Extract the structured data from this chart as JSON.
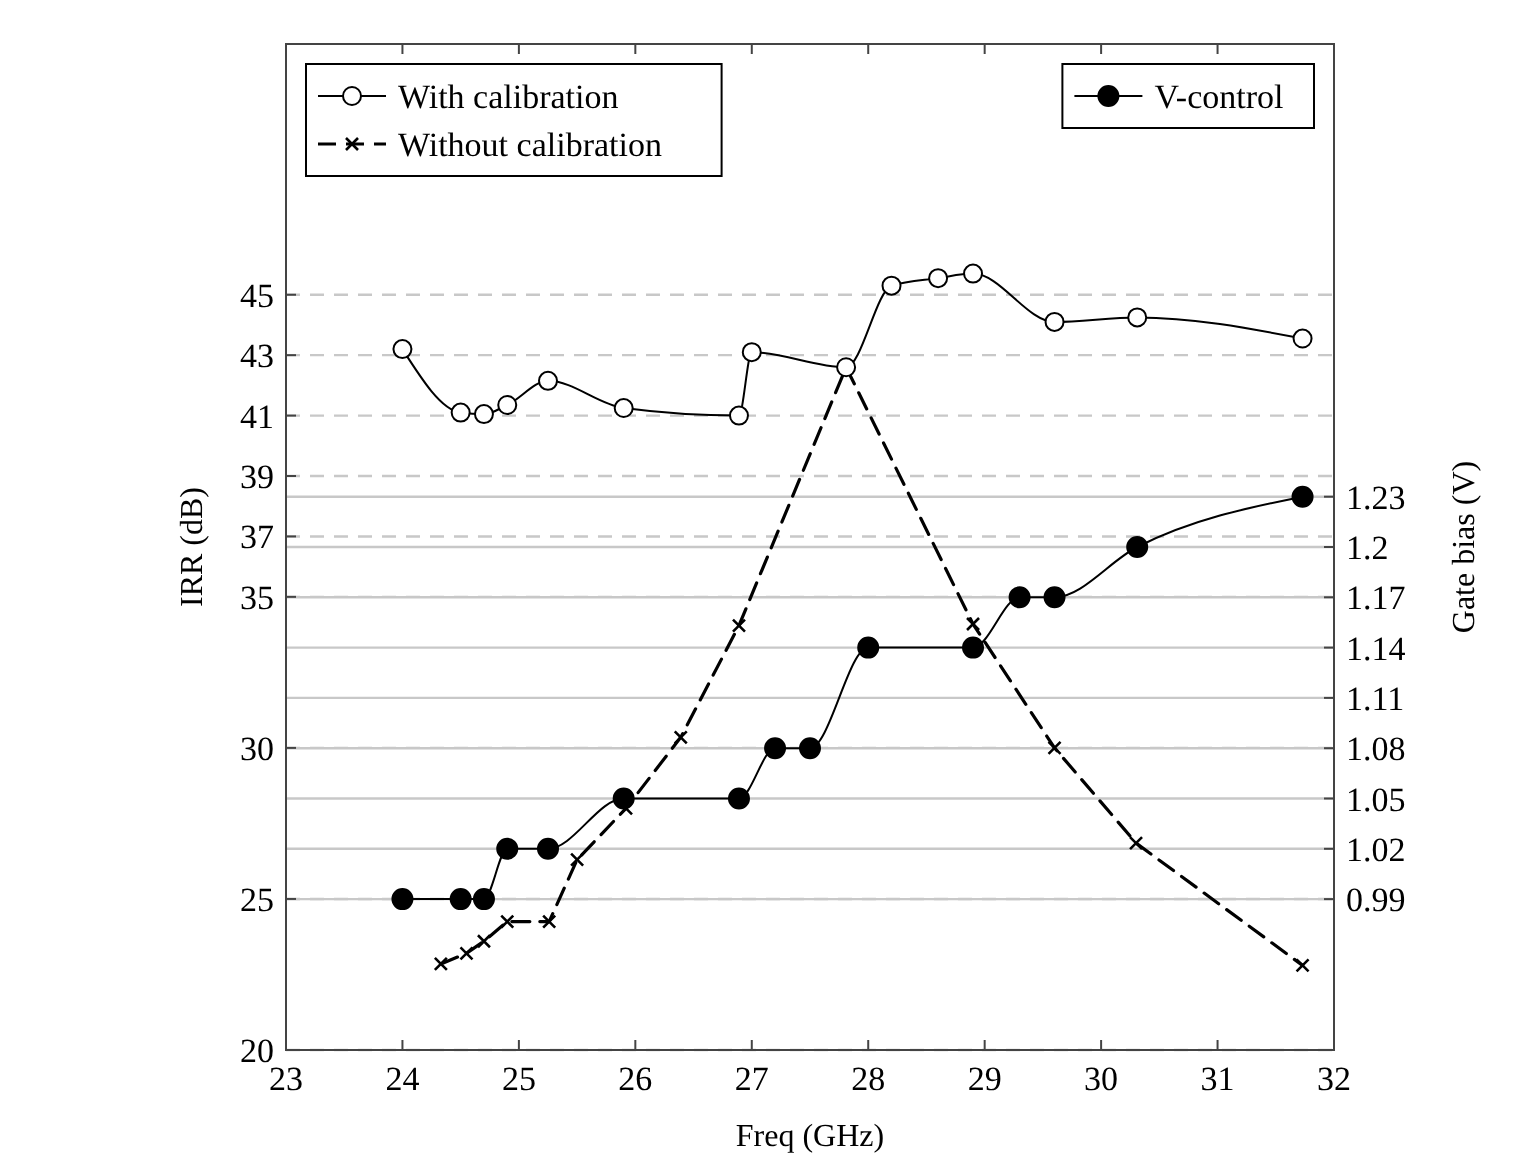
{
  "chart_data": {
    "type": "line",
    "xlabel": "Freq (GHz)",
    "ylabel": "IRR (dB)",
    "y2label": "Gate bias (V)",
    "xlim": [
      23,
      32
    ],
    "xticks": [
      23,
      24,
      25,
      26,
      27,
      28,
      29,
      30,
      31,
      32
    ],
    "ylim": [
      20,
      53.3
    ],
    "yticks": [
      20,
      25,
      30,
      35,
      37,
      39,
      41,
      43,
      45
    ],
    "y2lim": [
      0.9,
      1.5
    ],
    "y2ticks": [
      0.99,
      1.02,
      1.05,
      1.08,
      1.11,
      1.14,
      1.17,
      1.2,
      1.23
    ],
    "grid": "y",
    "legend": "top left",
    "series": [
      {
        "name": "With calibration",
        "color": "#000000",
        "marker": "circle",
        "line_style": "solid",
        "x": [
          24.0,
          24.5,
          24.7,
          24.9,
          25.25,
          25.9,
          26.89,
          27.0,
          27.81,
          28.2,
          28.6,
          28.9,
          29.6,
          30.31,
          31.73
        ],
        "values": [
          43.2,
          41.1,
          41.05,
          41.35,
          42.15,
          41.25,
          41.0,
          43.1,
          42.6,
          45.3,
          45.55,
          45.7,
          44.1,
          44.25,
          43.55
        ]
      },
      {
        "name": "Without calibration",
        "color": "#000000",
        "marker": "cross",
        "line_style": "dashed",
        "x": [
          24.33,
          24.55,
          24.7,
          24.9,
          25.26,
          25.5,
          25.92,
          26.39,
          26.89,
          27.81,
          28.9,
          29.6,
          30.3,
          31.73
        ],
        "values": [
          22.85,
          23.2,
          23.6,
          24.25,
          24.25,
          26.3,
          28.0,
          30.35,
          34.05,
          42.6,
          34.1,
          30.0,
          26.85,
          22.8
        ]
      },
      {
        "name": "V-control",
        "color": "#000000",
        "marker": "circle",
        "line_style": "solid",
        "axis": "y2",
        "x": [
          24.0,
          24.5,
          24.7,
          24.9,
          25.25,
          25.9,
          26.89,
          27.2,
          27.5,
          28.0,
          28.9,
          29.3,
          29.6,
          30.31,
          31.73
        ],
        "values": [
          0.99,
          0.99,
          0.99,
          1.02,
          1.02,
          1.05,
          1.05,
          1.08,
          1.08,
          1.14,
          1.14,
          1.17,
          1.17,
          1.2,
          1.23
        ]
      }
    ]
  }
}
